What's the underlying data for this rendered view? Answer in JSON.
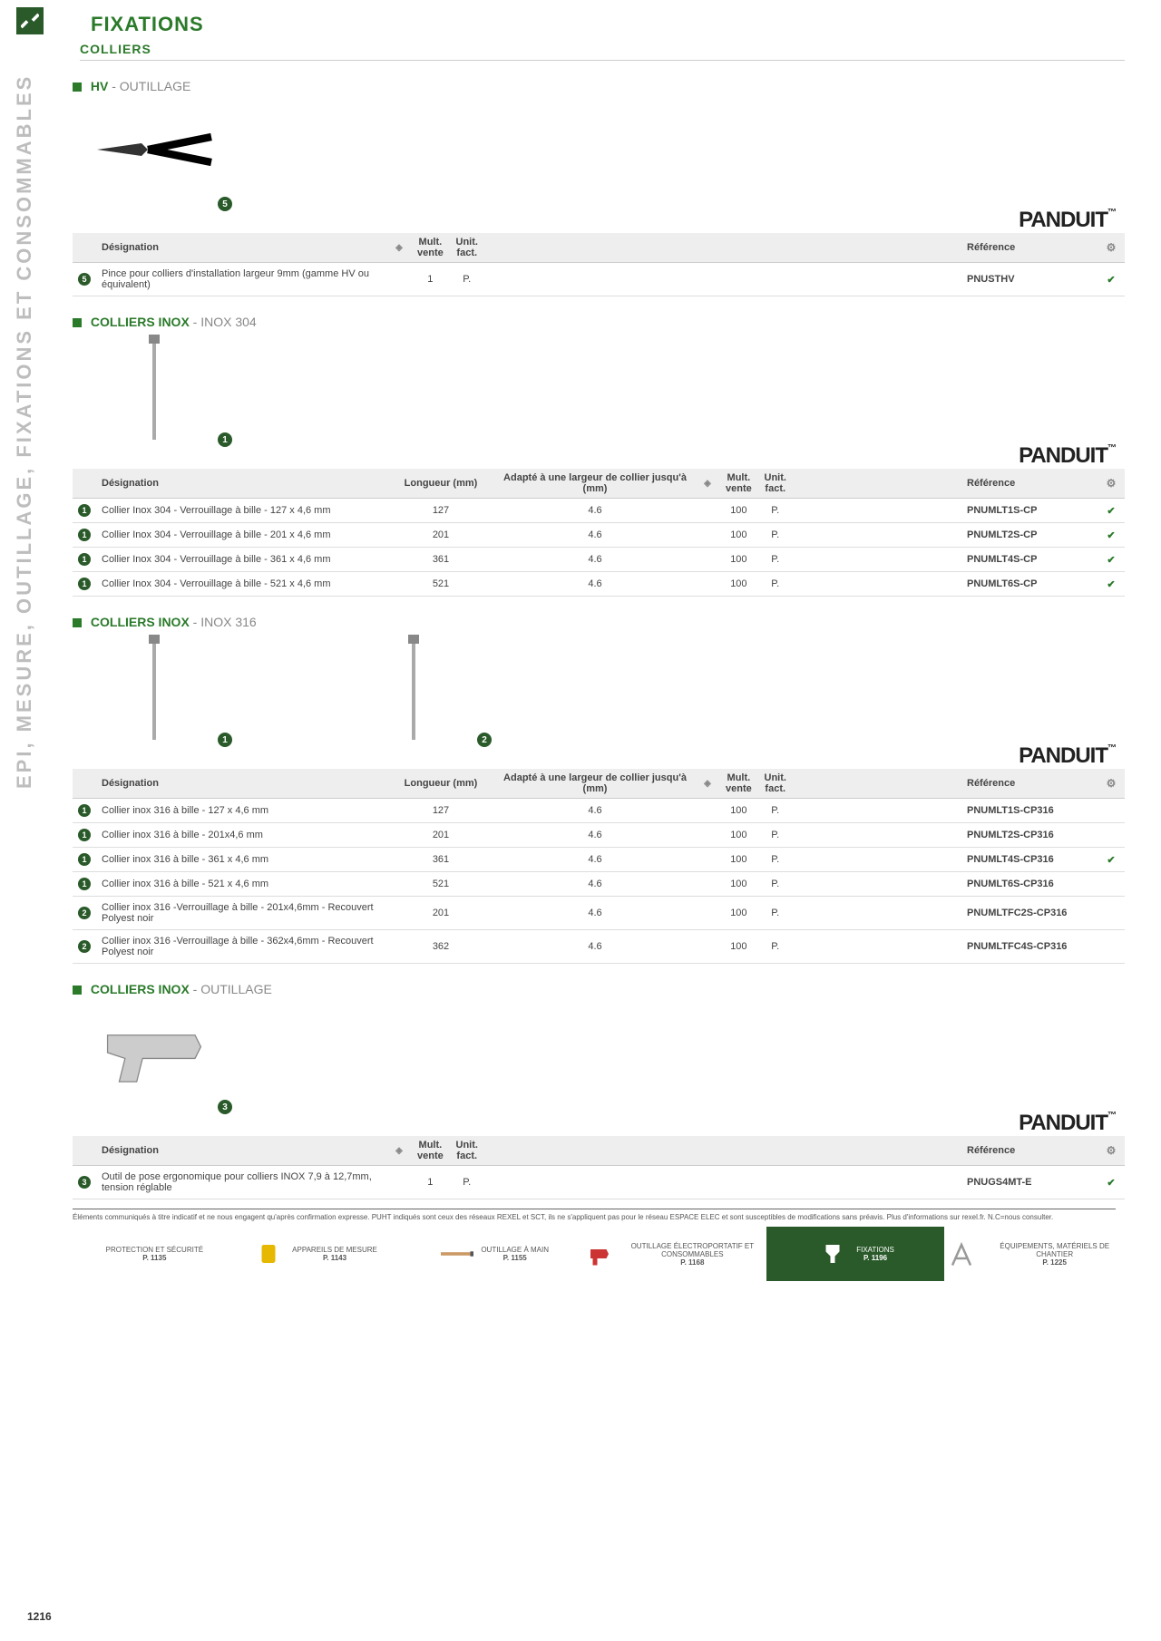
{
  "heading": "FIXATIONS",
  "subheading": "COLLIERS",
  "vertical_label": "EPI, MESURE, OUTILLAGE, FIXATIONS ET CONSOMMABLES",
  "brand": "PANDUIT",
  "brand_tm": "™",
  "columns": {
    "designation": "Désignation",
    "longueur": "Longueur (mm)",
    "adapte": "Adapté à une largeur de collier jusqu'à (mm)",
    "mult": "Mult. vente",
    "unit": "Unit. fact.",
    "reference": "Référence"
  },
  "sections": [
    {
      "title_bold": "HV",
      "title_light": " - OUTILLAGE",
      "image_badges": [
        "5"
      ],
      "show_longueur": false,
      "show_adapte": false,
      "rows": [
        {
          "badge": "5",
          "designation": "Pince pour colliers d'installation largeur 9mm (gamme HV ou équivalent)",
          "longueur": "",
          "adapte": "",
          "mult": "1",
          "unit": "P.",
          "reference": "PNUSTHV",
          "check": true
        }
      ]
    },
    {
      "title_bold": "COLLIERS INOX",
      "title_light": " - INOX 304",
      "image_badges": [
        "1"
      ],
      "show_longueur": true,
      "show_adapte": true,
      "rows": [
        {
          "badge": "1",
          "designation": "Collier Inox 304 - Verrouillage à bille - 127 x 4,6 mm",
          "longueur": "127",
          "adapte": "4.6",
          "mult": "100",
          "unit": "P.",
          "reference": "PNUMLT1S-CP",
          "check": true
        },
        {
          "badge": "1",
          "designation": "Collier Inox 304 - Verrouillage à bille - 201 x 4,6 mm",
          "longueur": "201",
          "adapte": "4.6",
          "mult": "100",
          "unit": "P.",
          "reference": "PNUMLT2S-CP",
          "check": true
        },
        {
          "badge": "1",
          "designation": "Collier Inox 304 - Verrouillage à bille - 361 x 4,6 mm",
          "longueur": "361",
          "adapte": "4.6",
          "mult": "100",
          "unit": "P.",
          "reference": "PNUMLT4S-CP",
          "check": true
        },
        {
          "badge": "1",
          "designation": "Collier Inox 304 - Verrouillage à bille - 521 x 4,6 mm",
          "longueur": "521",
          "adapte": "4.6",
          "mult": "100",
          "unit": "P.",
          "reference": "PNUMLT6S-CP",
          "check": true
        }
      ]
    },
    {
      "title_bold": "COLLIERS INOX",
      "title_light": " - INOX 316",
      "image_badges": [
        "1",
        "2"
      ],
      "show_longueur": true,
      "show_adapte": true,
      "rows": [
        {
          "badge": "1",
          "designation": "Collier inox 316 à bille - 127 x 4,6 mm",
          "longueur": "127",
          "adapte": "4.6",
          "mult": "100",
          "unit": "P.",
          "reference": "PNUMLT1S-CP316",
          "check": false
        },
        {
          "badge": "1",
          "designation": "Collier inox 316 à bille - 201x4,6 mm",
          "longueur": "201",
          "adapte": "4.6",
          "mult": "100",
          "unit": "P.",
          "reference": "PNUMLT2S-CP316",
          "check": false
        },
        {
          "badge": "1",
          "designation": "Collier inox 316 à bille - 361 x 4,6  mm",
          "longueur": "361",
          "adapte": "4.6",
          "mult": "100",
          "unit": "P.",
          "reference": "PNUMLT4S-CP316",
          "check": true
        },
        {
          "badge": "1",
          "designation": "Collier inox 316 à bille - 521 x 4,6 mm",
          "longueur": "521",
          "adapte": "4.6",
          "mult": "100",
          "unit": "P.",
          "reference": "PNUMLT6S-CP316",
          "check": false
        },
        {
          "badge": "2",
          "designation": "Collier inox 316 -Verrouillage à bille - 201x4,6mm - Recouvert Polyest noir",
          "longueur": "201",
          "adapte": "4.6",
          "mult": "100",
          "unit": "P.",
          "reference": "PNUMLTFC2S-CP316",
          "check": false
        },
        {
          "badge": "2",
          "designation": "Collier inox 316 -Verrouillage à bille - 362x4,6mm - Recouvert Polyest noir",
          "longueur": "362",
          "adapte": "4.6",
          "mult": "100",
          "unit": "P.",
          "reference": "PNUMLTFC4S-CP316",
          "check": false
        }
      ]
    },
    {
      "title_bold": "COLLIERS INOX",
      "title_light": " - OUTILLAGE",
      "image_badges": [
        "3"
      ],
      "show_longueur": false,
      "show_adapte": false,
      "rows": [
        {
          "badge": "3",
          "designation": "Outil de pose ergonomique pour colliers INOX 7,9 à 12,7mm, tension réglable",
          "longueur": "",
          "adapte": "",
          "mult": "1",
          "unit": "P.",
          "reference": "PNUGS4MT-E",
          "check": true
        }
      ]
    }
  ],
  "disclaimer": "Éléments communiqués à titre indicatif et ne nous engagent qu'après confirmation expresse. PUHT indiqués sont ceux des réseaux REXEL et SCT, ils ne s'appliquent pas pour le réseau ESPACE ELEC et sont susceptibles de modifications sans préavis. Plus d'informations sur rexel.fr. N.C=nous consulter.",
  "page_number": "1216",
  "footer": [
    {
      "label": "PROTECTION ET SÉCURITÉ",
      "page": "P. 1135",
      "active": false
    },
    {
      "label": "APPAREILS DE MESURE",
      "page": "P. 1143",
      "active": false
    },
    {
      "label": "OUTILLAGE À MAIN",
      "page": "P. 1155",
      "active": false
    },
    {
      "label": "OUTILLAGE ÉLECTROPORTATIF ET CONSOMMABLES",
      "page": "P. 1168",
      "active": false
    },
    {
      "label": "FIXATIONS",
      "page": "P. 1196",
      "active": true
    },
    {
      "label": "ÉQUIPEMENTS, MATÉRIELS DE CHANTIER",
      "page": "P. 1225",
      "active": false
    }
  ]
}
